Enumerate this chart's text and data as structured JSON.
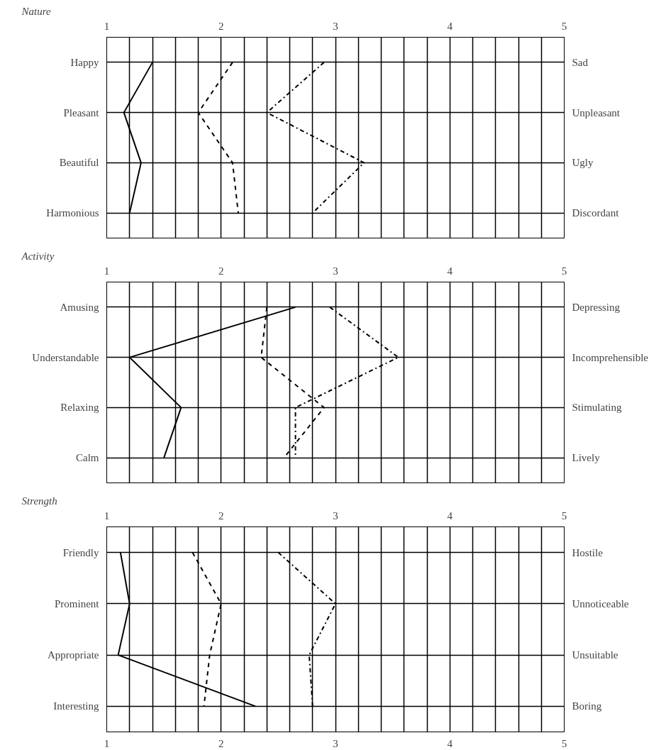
{
  "chart_data": [
    {
      "type": "line",
      "orientation": "horizontal",
      "title": "Nature",
      "categories": [
        "Happy",
        "Pleasant",
        "Beautiful",
        "Harmonious"
      ],
      "y2_categories": [
        "Sad",
        "Unpleasant",
        "Ugly",
        "Discordant"
      ],
      "xlim": [
        1,
        5
      ],
      "xticks": [
        1,
        {
          "value": 1.2,
          "label": null
        },
        {
          "value": 1.4,
          "label": null
        },
        {
          "value": 1.6,
          "label": null
        },
        {
          "value": 1.8,
          "label": null
        },
        2,
        {
          "value": 2.2,
          "label": null
        },
        {
          "value": 2.4,
          "label": null
        },
        {
          "value": 2.6,
          "label": null
        },
        {
          "value": 2.8,
          "label": null
        },
        3,
        {
          "value": 3.2,
          "label": null
        },
        {
          "value": 3.4,
          "label": null
        },
        {
          "value": 3.6,
          "label": null
        },
        {
          "value": 3.8,
          "label": null
        },
        4,
        {
          "value": 4.2,
          "label": null
        },
        {
          "value": 4.4,
          "label": null
        },
        {
          "value": 4.6,
          "label": null
        },
        {
          "value": 4.8,
          "label": null
        },
        5
      ],
      "grid": true,
      "series": [
        {
          "color": "#000000",
          "line_style": "solid",
          "values": [
            1.4,
            1.15,
            1.3,
            1.2
          ]
        },
        {
          "color": "#000000",
          "line_style": "dashed",
          "values": [
            2.1,
            1.8,
            2.1,
            2.15
          ]
        },
        {
          "color": "#000000",
          "line_style": "dashdot",
          "values": [
            2.9,
            2.4,
            3.25,
            2.8
          ]
        }
      ]
    },
    {
      "type": "line",
      "orientation": "horizontal",
      "title": "Activity",
      "categories": [
        "Amusing",
        "Understandable",
        "Relaxing",
        "Calm"
      ],
      "y2_categories": [
        "Depressing",
        "Incomprehensible",
        "Stimulating",
        "Lively"
      ],
      "xlim": [
        1,
        5
      ],
      "xticks": [
        1,
        {
          "value": 1.2,
          "label": null
        },
        {
          "value": 1.4,
          "label": null
        },
        {
          "value": 1.6,
          "label": null
        },
        {
          "value": 1.8,
          "label": null
        },
        2,
        {
          "value": 2.2,
          "label": null
        },
        {
          "value": 2.4,
          "label": null
        },
        {
          "value": 2.6,
          "label": null
        },
        {
          "value": 2.8,
          "label": null
        },
        3,
        {
          "value": 3.2,
          "label": null
        },
        {
          "value": 3.4,
          "label": null
        },
        {
          "value": 3.6,
          "label": null
        },
        {
          "value": 3.8,
          "label": null
        },
        4,
        {
          "value": 4.2,
          "label": null
        },
        {
          "value": 4.4,
          "label": null
        },
        {
          "value": 4.6,
          "label": null
        },
        {
          "value": 4.8,
          "label": null
        },
        5
      ],
      "grid": true,
      "series": [
        {
          "color": "#000000",
          "line_style": "solid",
          "values": [
            2.65,
            1.2,
            1.65,
            1.5
          ]
        },
        {
          "color": "#000000",
          "line_style": "dashed",
          "values": [
            2.4,
            2.35,
            2.9,
            2.55
          ]
        },
        {
          "color": "#000000",
          "line_style": "dashdot",
          "values": [
            2.95,
            3.55,
            2.65,
            2.65
          ]
        }
      ]
    },
    {
      "type": "line",
      "orientation": "horizontal",
      "title": "Strength",
      "categories": [
        "Friendly",
        "Prominent",
        "Appropriate",
        "Interesting"
      ],
      "y2_categories": [
        "Hostile",
        "Unnoticeable",
        "Unsuitable",
        "Boring"
      ],
      "xlim": [
        1,
        5
      ],
      "xticks": [
        1,
        {
          "value": 1.2,
          "label": null
        },
        {
          "value": 1.4,
          "label": null
        },
        {
          "value": 1.6,
          "label": null
        },
        {
          "value": 1.8,
          "label": null
        },
        2,
        {
          "value": 2.2,
          "label": null
        },
        {
          "value": 2.4,
          "label": null
        },
        {
          "value": 2.6,
          "label": null
        },
        {
          "value": 2.8,
          "label": null
        },
        3,
        {
          "value": 3.2,
          "label": null
        },
        {
          "value": 3.4,
          "label": null
        },
        {
          "value": 3.6,
          "label": null
        },
        {
          "value": 3.8,
          "label": null
        },
        4,
        {
          "value": 4.2,
          "label": null
        },
        {
          "value": 4.4,
          "label": null
        },
        {
          "value": 4.6,
          "label": null
        },
        {
          "value": 4.8,
          "label": null
        },
        5
      ],
      "x2lim": [
        1,
        5
      ],
      "x2ticks": [
        1,
        2,
        3,
        4,
        5
      ],
      "grid": true,
      "series": [
        {
          "color": "#000000",
          "line_style": "solid",
          "values": [
            1.12,
            1.2,
            1.1,
            2.3
          ]
        },
        {
          "color": "#000000",
          "line_style": "dashed",
          "values": [
            1.75,
            2.0,
            1.9,
            1.85
          ]
        },
        {
          "color": "#000000",
          "line_style": "dashdot",
          "values": [
            2.5,
            3.0,
            2.77,
            2.8
          ]
        }
      ]
    }
  ]
}
